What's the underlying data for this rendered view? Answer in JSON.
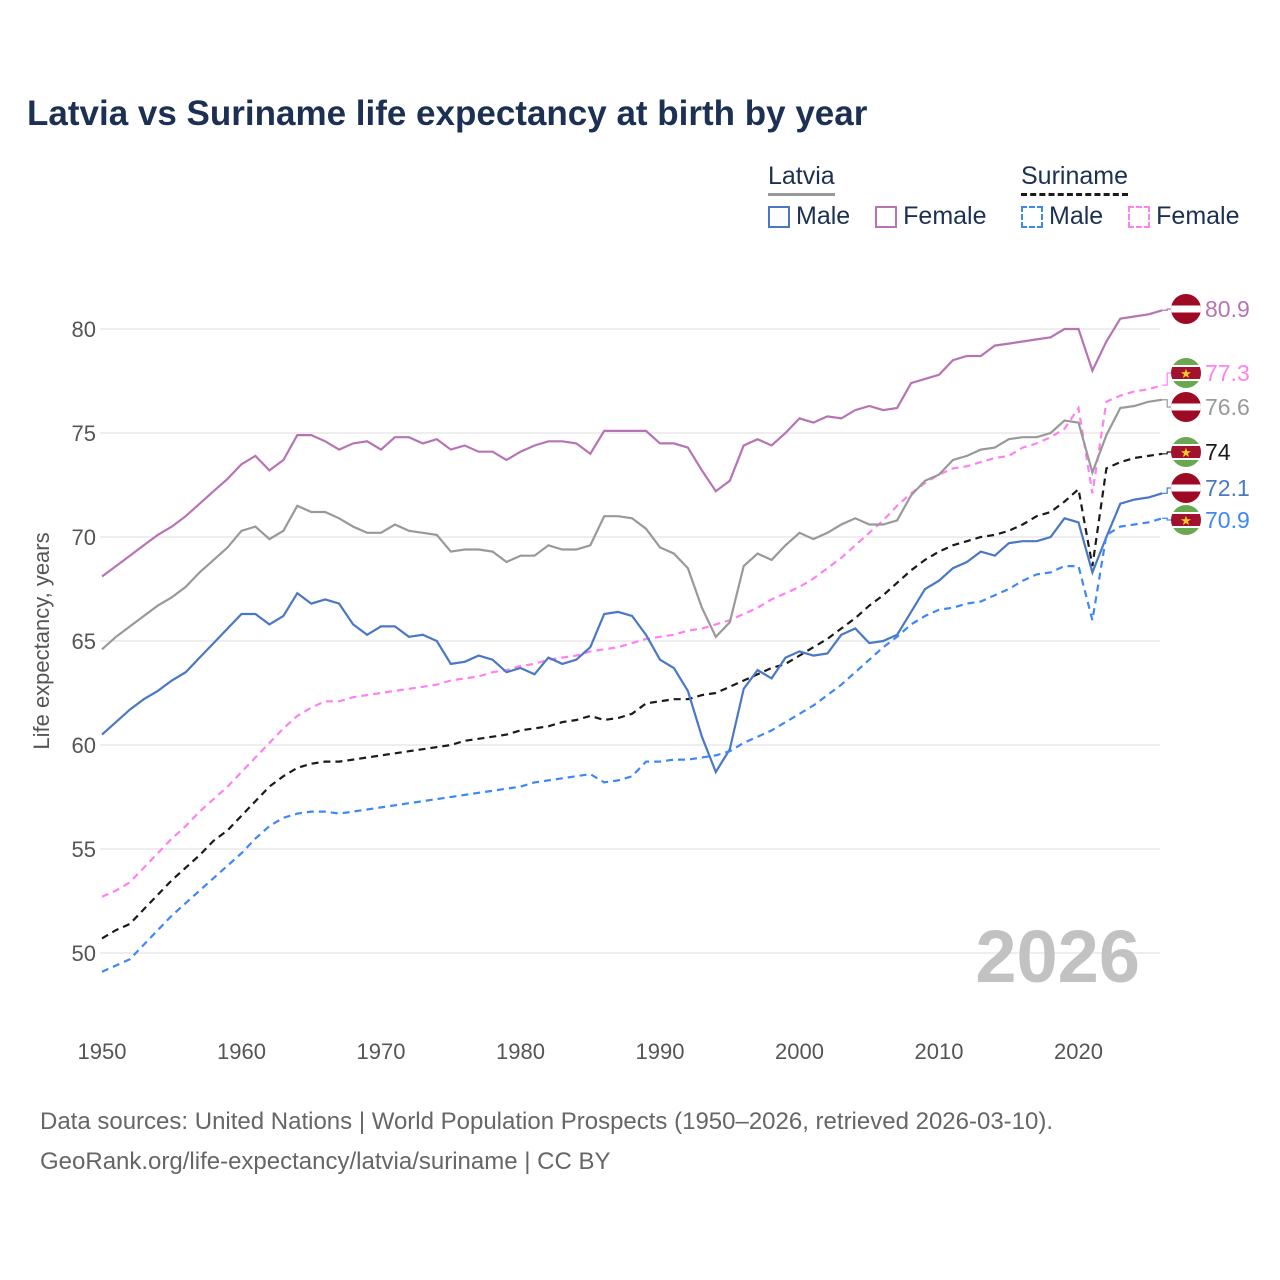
{
  "chart_data": {
    "type": "line",
    "title": "Latvia vs Suriname life expectancy at birth by year",
    "ylabel": "Life expectancy, years",
    "xlabel": "",
    "xlim": [
      1950,
      2026
    ],
    "ylim": [
      47.5,
      82
    ],
    "xticks": [
      1950,
      1960,
      1970,
      1980,
      1990,
      2000,
      2010,
      2020
    ],
    "yticks": [
      50,
      55,
      60,
      65,
      70,
      75,
      80
    ],
    "grid": true,
    "watermark_year": "2026",
    "legend": {
      "groups": [
        {
          "label": "Latvia",
          "items": [
            "Male",
            "Female"
          ]
        },
        {
          "label": "Suriname",
          "items": [
            "Male",
            "Female"
          ]
        }
      ],
      "placement": "top-right"
    },
    "x_start": 1950,
    "series": [
      {
        "name": "Latvia Female",
        "country": "latvia",
        "color": "#b774b4",
        "dash": false,
        "end_label": "80.9",
        "values": [
          68.1,
          68.6,
          69.1,
          69.6,
          70.1,
          70.5,
          71.0,
          71.6,
          72.2,
          72.8,
          73.5,
          73.9,
          73.2,
          73.7,
          74.9,
          74.9,
          74.6,
          74.2,
          74.5,
          74.6,
          74.2,
          74.8,
          74.8,
          74.5,
          74.7,
          74.2,
          74.4,
          74.1,
          74.1,
          73.7,
          74.1,
          74.4,
          74.6,
          74.6,
          74.5,
          74.0,
          75.1,
          75.1,
          75.1,
          75.1,
          74.5,
          74.5,
          74.3,
          73.2,
          72.2,
          72.7,
          74.4,
          74.7,
          74.4,
          75.0,
          75.7,
          75.5,
          75.8,
          75.7,
          76.1,
          76.3,
          76.1,
          76.2,
          77.4,
          77.6,
          77.8,
          78.5,
          78.7,
          78.7,
          79.2,
          79.3,
          79.4,
          79.5,
          79.6,
          80.0,
          80.0,
          78.0,
          79.4,
          80.5,
          80.6,
          80.7,
          80.9
        ]
      },
      {
        "name": "Suriname Female",
        "country": "suriname",
        "color": "#ff80f0",
        "dash": true,
        "end_label": "77.3",
        "values": [
          52.7,
          53.0,
          53.4,
          54.1,
          54.8,
          55.5,
          56.1,
          56.8,
          57.4,
          58.0,
          58.7,
          59.4,
          60.1,
          60.8,
          61.4,
          61.8,
          62.1,
          62.1,
          62.3,
          62.4,
          62.5,
          62.6,
          62.7,
          62.8,
          62.9,
          63.1,
          63.2,
          63.3,
          63.5,
          63.6,
          63.8,
          63.9,
          64.1,
          64.2,
          64.3,
          64.5,
          64.6,
          64.7,
          64.9,
          65.1,
          65.2,
          65.3,
          65.5,
          65.6,
          65.8,
          66.0,
          66.3,
          66.6,
          67.0,
          67.3,
          67.6,
          68.0,
          68.5,
          69.0,
          69.6,
          70.2,
          70.8,
          71.5,
          72.1,
          72.6,
          73.0,
          73.3,
          73.4,
          73.6,
          73.8,
          73.9,
          74.3,
          74.5,
          74.8,
          75.2,
          76.2,
          72.1,
          76.5,
          76.8,
          77.0,
          77.1,
          77.3
        ]
      },
      {
        "name": "Latvia",
        "country": "latvia",
        "color": "#999999",
        "dash": false,
        "end_label": "76.6",
        "values": [
          64.6,
          65.2,
          65.7,
          66.2,
          66.7,
          67.1,
          67.6,
          68.3,
          68.9,
          69.5,
          70.3,
          70.5,
          69.9,
          70.3,
          71.5,
          71.2,
          71.2,
          70.9,
          70.5,
          70.2,
          70.2,
          70.6,
          70.3,
          70.2,
          70.1,
          69.3,
          69.4,
          69.4,
          69.3,
          68.8,
          69.1,
          69.1,
          69.6,
          69.4,
          69.4,
          69.6,
          71.0,
          71.0,
          70.9,
          70.4,
          69.5,
          69.2,
          68.5,
          66.6,
          65.2,
          65.9,
          68.6,
          69.2,
          68.9,
          69.6,
          70.2,
          69.9,
          70.2,
          70.6,
          70.9,
          70.6,
          70.6,
          70.8,
          72.0,
          72.7,
          73.0,
          73.7,
          73.9,
          74.2,
          74.3,
          74.7,
          74.8,
          74.8,
          75.0,
          75.6,
          75.5,
          73.1,
          74.9,
          76.2,
          76.3,
          76.5,
          76.6
        ]
      },
      {
        "name": "Suriname",
        "country": "suriname",
        "color": "#1a1a1a",
        "dash": true,
        "end_label": "74",
        "values": [
          50.7,
          51.1,
          51.4,
          52.1,
          52.8,
          53.5,
          54.1,
          54.7,
          55.4,
          55.9,
          56.6,
          57.3,
          58.0,
          58.5,
          58.9,
          59.1,
          59.2,
          59.2,
          59.3,
          59.4,
          59.5,
          59.6,
          59.7,
          59.8,
          59.9,
          60.0,
          60.2,
          60.3,
          60.4,
          60.5,
          60.7,
          60.8,
          60.9,
          61.1,
          61.2,
          61.4,
          61.2,
          61.3,
          61.5,
          62.0,
          62.1,
          62.2,
          62.2,
          62.4,
          62.5,
          62.8,
          63.1,
          63.4,
          63.7,
          63.9,
          64.3,
          64.7,
          65.1,
          65.6,
          66.1,
          66.7,
          67.2,
          67.8,
          68.4,
          68.9,
          69.3,
          69.6,
          69.8,
          70.0,
          70.1,
          70.3,
          70.6,
          71.0,
          71.2,
          71.7,
          72.3,
          68.6,
          73.3,
          73.6,
          73.8,
          73.9,
          74.0
        ]
      },
      {
        "name": "Latvia Male",
        "country": "latvia",
        "color": "#4a78c4",
        "dash": false,
        "end_label": "72.1",
        "values": [
          60.5,
          61.1,
          61.7,
          62.2,
          62.6,
          63.1,
          63.5,
          64.2,
          64.9,
          65.6,
          66.3,
          66.3,
          65.8,
          66.2,
          67.3,
          66.8,
          67.0,
          66.8,
          65.8,
          65.3,
          65.7,
          65.7,
          65.2,
          65.3,
          65.0,
          63.9,
          64.0,
          64.3,
          64.1,
          63.5,
          63.7,
          63.4,
          64.2,
          63.9,
          64.1,
          64.7,
          66.3,
          66.4,
          66.2,
          65.3,
          64.1,
          63.7,
          62.6,
          60.4,
          58.7,
          59.8,
          62.7,
          63.6,
          63.2,
          64.2,
          64.5,
          64.3,
          64.4,
          65.3,
          65.6,
          64.9,
          65.0,
          65.3,
          66.4,
          67.5,
          67.9,
          68.5,
          68.8,
          69.3,
          69.1,
          69.7,
          69.8,
          69.8,
          70.0,
          70.9,
          70.7,
          68.3,
          70.0,
          71.6,
          71.8,
          71.9,
          72.1
        ]
      },
      {
        "name": "Suriname Male",
        "country": "suriname",
        "color": "#3d88f5",
        "dash": true,
        "end_label": "70.9",
        "values": [
          49.1,
          49.4,
          49.7,
          50.4,
          51.1,
          51.8,
          52.4,
          53.0,
          53.6,
          54.2,
          54.8,
          55.5,
          56.1,
          56.5,
          56.7,
          56.8,
          56.8,
          56.7,
          56.8,
          56.9,
          57.0,
          57.1,
          57.2,
          57.3,
          57.4,
          57.5,
          57.6,
          57.7,
          57.8,
          57.9,
          58.0,
          58.2,
          58.3,
          58.4,
          58.5,
          58.6,
          58.2,
          58.3,
          58.5,
          59.2,
          59.2,
          59.3,
          59.3,
          59.4,
          59.5,
          59.7,
          60.1,
          60.4,
          60.7,
          61.1,
          61.5,
          61.9,
          62.4,
          62.9,
          63.5,
          64.1,
          64.7,
          65.2,
          65.8,
          66.2,
          66.5,
          66.6,
          66.8,
          66.9,
          67.2,
          67.5,
          67.9,
          68.2,
          68.3,
          68.6,
          68.6,
          66.0,
          70.1,
          70.5,
          70.6,
          70.7,
          70.9
        ]
      }
    ]
  },
  "legend_text": {
    "latvia": "Latvia",
    "suriname": "Suriname",
    "male": "Male",
    "female": "Female"
  },
  "colors": {
    "title": "#1b3052",
    "grid": "#e8e8e8",
    "latvia_flag_red": "#9e0a24",
    "suriname_flag_green": "#6aa84f",
    "suriname_flag_red": "#a2122e",
    "suriname_star": "#f5d020"
  },
  "footer": {
    "line1": "Data sources: United Nations | World Population Prospects (1950–2026, retrieved 2026-03-10).",
    "line2": "GeoRank.org/life-expectancy/latvia/suriname | CC BY"
  }
}
